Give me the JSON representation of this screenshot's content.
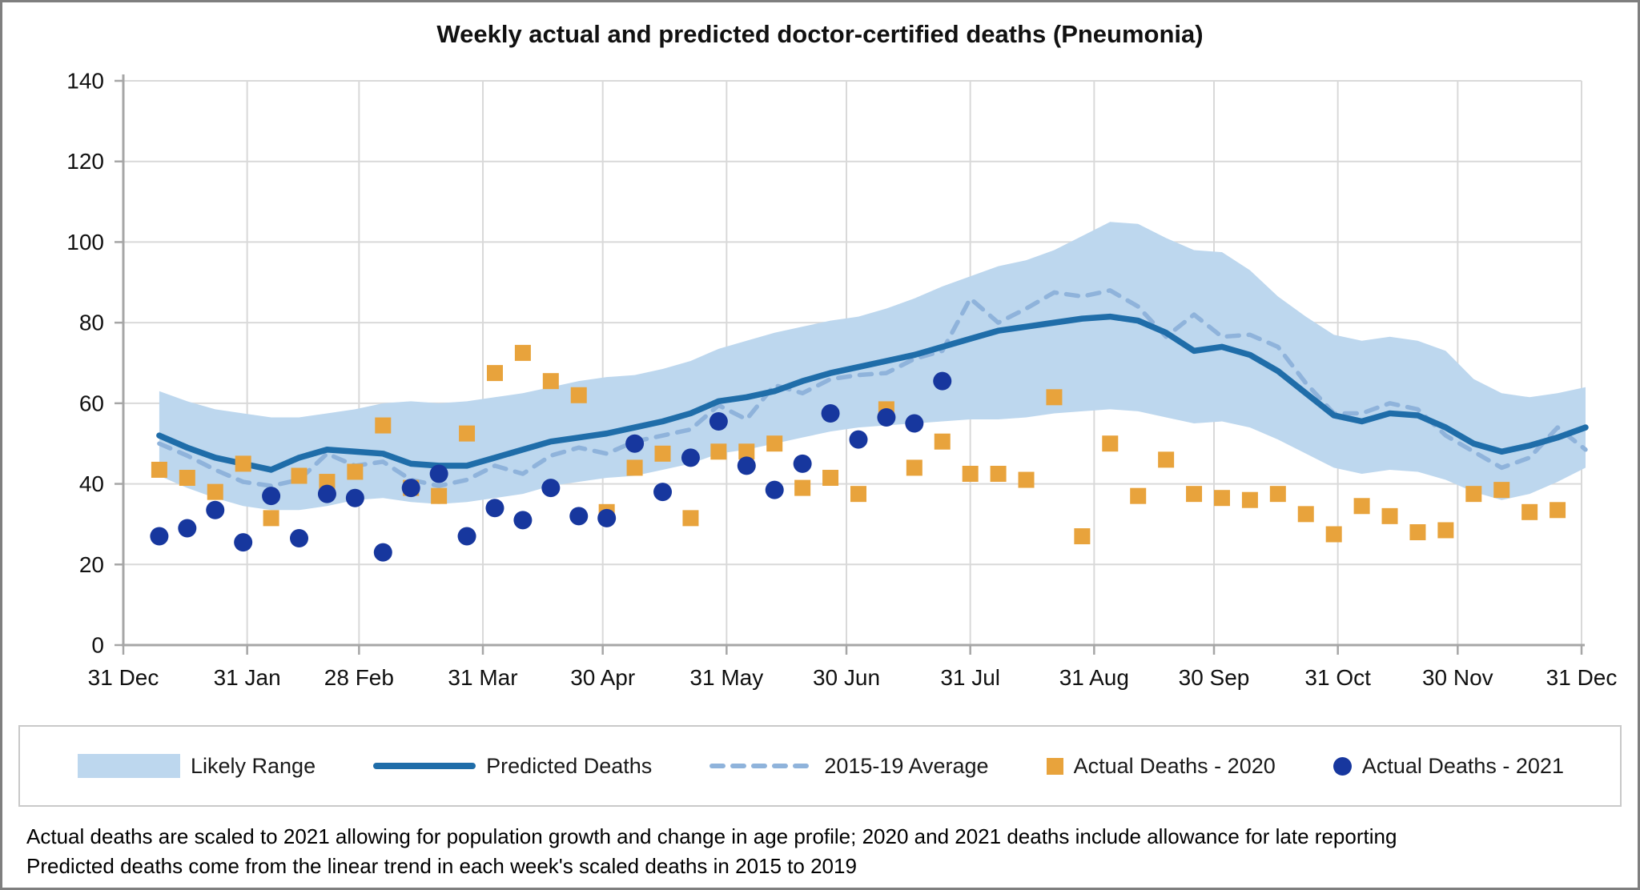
{
  "title": "Weekly actual and predicted doctor-certified deaths (Pneumonia)",
  "colors": {
    "band": "#BDD7EE",
    "predicted_line": "#1F6DA9",
    "average_dashed": "#8FB3DB",
    "actual_2020_square": "#E8A33C",
    "actual_2021_circle": "#17379E",
    "gridline": "#D9D9D9",
    "axis": "#A6A6A6",
    "text": "#111111"
  },
  "legend": {
    "items": [
      {
        "name": "likely-range",
        "label": "Likely Range",
        "type": "band"
      },
      {
        "name": "predicted-deaths",
        "label": "Predicted Deaths",
        "type": "line"
      },
      {
        "name": "average-2015-19",
        "label": "2015-19 Average",
        "type": "dashed"
      },
      {
        "name": "actual-2020",
        "label": "Actual Deaths - 2020",
        "type": "square"
      },
      {
        "name": "actual-2021",
        "label": "Actual Deaths - 2021",
        "type": "circle"
      }
    ]
  },
  "footnotes": [
    "Actual deaths are scaled to 2021 allowing for population growth and change in age profile; 2020 and 2021 deaths include allowance for late reporting",
    "Predicted deaths come from the linear trend in each week's scaled deaths in 2015 to 2019"
  ],
  "chart_data": {
    "type": "line",
    "title": "Weekly actual and predicted doctor-certified deaths (Pneumonia)",
    "xlabel": "",
    "ylabel": "",
    "grid": true,
    "legend_position": "bottom",
    "y_axis": {
      "min": 0,
      "max": 140,
      "ticks": [
        0,
        20,
        40,
        60,
        80,
        100,
        120,
        140
      ]
    },
    "x_axis": {
      "tick_labels": [
        "31 Dec",
        "31 Jan",
        "28 Feb",
        "31 Mar",
        "30 Apr",
        "31 May",
        "30 Jun",
        "31 Jul",
        "31 Aug",
        "30 Sep",
        "31 Oct",
        "30 Nov",
        "31 Dec"
      ],
      "tick_days": [
        0,
        31,
        59,
        90,
        120,
        151,
        181,
        212,
        243,
        273,
        304,
        334,
        365
      ],
      "days_total": 365
    },
    "weeks_start_day": 9,
    "week_interval_days": 7,
    "series": [
      {
        "name": "Likely Range",
        "type": "band",
        "upper": [
          63,
          60.5,
          58.5,
          57.5,
          56.5,
          56.5,
          57.5,
          58.5,
          60,
          60.5,
          60,
          60.5,
          61.5,
          62.5,
          64,
          65.5,
          66.5,
          67,
          68.5,
          70.5,
          73.5,
          75.5,
          77.5,
          79,
          80.5,
          81.5,
          83.5,
          86,
          89,
          91.5,
          94,
          95.5,
          98,
          101.5,
          105,
          104.5,
          101,
          98,
          97.5,
          93,
          86.5,
          81.5,
          77,
          75.5,
          76.5,
          75.5,
          73,
          66,
          62.5,
          61.5,
          62.5,
          64
        ],
        "lower": [
          42,
          39,
          36.5,
          34.5,
          33.5,
          33.5,
          34.5,
          36,
          36.5,
          35.5,
          35,
          35.5,
          36.5,
          37.5,
          39.5,
          40.5,
          41.5,
          42,
          43.5,
          45,
          47.5,
          48.5,
          50,
          51.5,
          53,
          54,
          54.5,
          55,
          55.5,
          56,
          56,
          56.5,
          57.5,
          58,
          58.5,
          58,
          56.5,
          55,
          55.5,
          54,
          51,
          47.5,
          44,
          42.5,
          43.5,
          43,
          41,
          38,
          36,
          37.5,
          40.5,
          44
        ]
      },
      {
        "name": "Predicted Deaths",
        "type": "line",
        "values": [
          52,
          49,
          46.5,
          45,
          43.5,
          46.5,
          48.5,
          48,
          47.5,
          45,
          44.5,
          44.5,
          46.5,
          48.5,
          50.5,
          51.5,
          52.5,
          54,
          55.5,
          57.5,
          60.5,
          61.5,
          63,
          65.5,
          67.5,
          69,
          70.5,
          72,
          74,
          76,
          78,
          79,
          80,
          81,
          81.5,
          80.5,
          77.5,
          73,
          74,
          72,
          68,
          62.5,
          57,
          55.5,
          57.5,
          57,
          54,
          50,
          48,
          49.5,
          51.5,
          54
        ]
      },
      {
        "name": "2015-19 Average",
        "type": "dashed",
        "values": [
          50,
          47,
          43.5,
          40.5,
          39.5,
          41,
          47.5,
          44.5,
          45.5,
          41,
          39.5,
          41,
          44.5,
          42.5,
          47,
          49,
          47.5,
          50.5,
          52,
          53.5,
          59.5,
          56,
          64.5,
          62.5,
          66,
          67,
          67.5,
          71,
          73,
          86,
          80,
          83.5,
          87.5,
          86.5,
          88,
          84,
          76.5,
          82,
          76.5,
          77,
          74,
          65,
          57.5,
          57.5,
          60,
          58.5,
          52,
          48,
          44,
          46.5,
          54,
          48.5
        ]
      },
      {
        "name": "Actual Deaths - 2020",
        "type": "square",
        "values": [
          43.5,
          41.5,
          38,
          45,
          31.5,
          42,
          40.5,
          43,
          54.5,
          39,
          37,
          52.5,
          67.5,
          72.5,
          65.5,
          62,
          33,
          44,
          47.5,
          31.5,
          48,
          48,
          50,
          39,
          41.5,
          37.5,
          58.5,
          44,
          50.5,
          42.5,
          42.5,
          41,
          61.5,
          27,
          50,
          37,
          46,
          37.5,
          36.5,
          36,
          37.5,
          32.5,
          27.5,
          34.5,
          32,
          28,
          28.5,
          37.5,
          38.5,
          33,
          33.5
        ]
      },
      {
        "name": "Actual Deaths - 2021",
        "type": "circle",
        "values": [
          27,
          29,
          33.5,
          25.5,
          37,
          26.5,
          37.5,
          36.5,
          23,
          39,
          42.5,
          27,
          34,
          31,
          39,
          32,
          31.5,
          50,
          38,
          46.5,
          55.5,
          44.5,
          38.5,
          45,
          57.5,
          51,
          56.5,
          55,
          65.5
        ]
      }
    ]
  }
}
